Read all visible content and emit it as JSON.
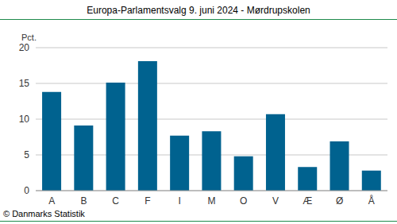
{
  "chart_data": {
    "type": "bar",
    "title": "Europa-Parlamentsvalg 9. juni 2024 - Mørdrupskolen",
    "y_label": "Pct.",
    "annotations": [
      "© Danmarks Statistik"
    ],
    "categories": [
      "A",
      "B",
      "C",
      "F",
      "I",
      "M",
      "O",
      "V",
      "Æ",
      "Ø",
      "Å"
    ],
    "values": [
      13.8,
      9.1,
      15.1,
      18.1,
      7.7,
      8.3,
      4.8,
      10.7,
      3.3,
      6.9,
      2.8
    ],
    "color": "#00628f",
    "ylim": [
      0,
      20
    ],
    "yticks": [
      0,
      5,
      10,
      15,
      20
    ],
    "grid": true
  }
}
